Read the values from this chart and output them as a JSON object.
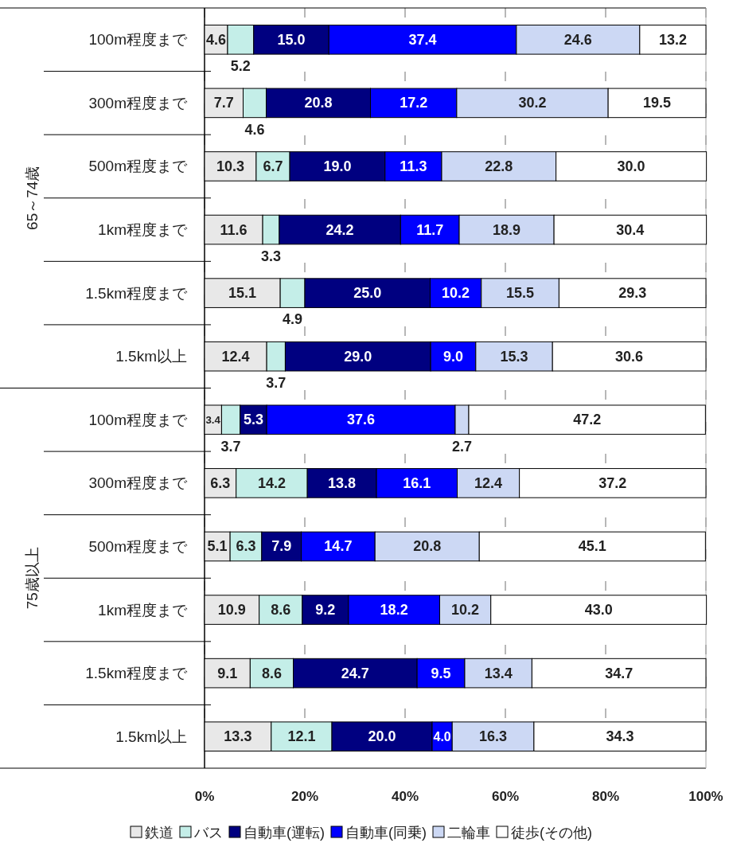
{
  "chart_data": {
    "type": "bar",
    "orientation": "horizontal",
    "stacked": true,
    "categories": [
      "100m程度まで",
      "300m程度まで",
      "500m程度まで",
      "1km程度まで",
      "1.5km程度まで",
      "1.5km以上",
      "100m程度まで",
      "300m程度まで",
      "500m程度まで",
      "1km程度まで",
      "1.5km程度まで",
      "1.5km以上"
    ],
    "series": [
      {
        "name": "鉄道",
        "color": "#e8e8e8",
        "values": [
          4.6,
          7.7,
          10.3,
          11.6,
          15.1,
          12.4,
          3.4,
          6.3,
          5.1,
          10.9,
          9.1,
          13.3
        ],
        "value_labels": [
          "4.6",
          "7.7",
          "10.3",
          "11.6",
          "15.1",
          "12.4",
          "3.4",
          "6.3",
          "5.1",
          "10.9",
          "9.1",
          "13.3"
        ]
      },
      {
        "name": "バス",
        "color": "#c4eee8",
        "values": [
          5.2,
          4.6,
          6.7,
          3.3,
          4.9,
          3.7,
          3.7,
          14.2,
          6.3,
          8.6,
          8.6,
          12.1
        ],
        "value_labels": [
          "5.2",
          "4.6",
          "6.7",
          "3.3",
          "4.9",
          "3.7",
          "3.7",
          "14.2",
          "6.3",
          "8.6",
          "8.6",
          "12.1"
        ]
      },
      {
        "name": "自動車(運転)",
        "color": "#000080",
        "values": [
          15.0,
          20.8,
          19.0,
          24.2,
          25.0,
          29.0,
          5.3,
          13.8,
          7.9,
          9.2,
          24.7,
          20.0
        ],
        "value_labels": [
          "15.0",
          "20.8",
          "19.0",
          "24.2",
          "25.0",
          "29.0",
          "5.3",
          "13.8",
          "7.9",
          "9.2",
          "24.7",
          "20.0"
        ]
      },
      {
        "name": "自動車(同乗)",
        "color": "#0000ff",
        "values": [
          37.4,
          17.2,
          11.3,
          11.7,
          10.2,
          9.0,
          37.6,
          16.1,
          14.7,
          18.2,
          9.5,
          4.0
        ],
        "value_labels": [
          "37.4",
          "17.2",
          "11.3",
          "11.7",
          "10.2",
          "9.0",
          "37.6",
          "16.1",
          "14.7",
          "18.2",
          "9.5",
          "4.0"
        ]
      },
      {
        "name": "二輪車",
        "color": "#ccd8f4",
        "values": [
          24.6,
          30.2,
          22.8,
          18.9,
          15.5,
          15.3,
          2.7,
          12.4,
          20.8,
          10.2,
          13.4,
          16.3
        ],
        "value_labels": [
          "24.6",
          "30.2",
          "22.8",
          "18.9",
          "15.5",
          "15.3",
          "2.7",
          "12.4",
          "20.8",
          "10.2",
          "13.4",
          "16.3"
        ]
      },
      {
        "name": "徒歩(その他)",
        "color": "#ffffff",
        "values": [
          13.2,
          19.5,
          30.0,
          30.4,
          29.3,
          30.6,
          47.2,
          37.2,
          45.1,
          43.0,
          34.7,
          34.3
        ],
        "value_labels": [
          "13.2",
          "19.5",
          "30.0",
          "30.4",
          "29.3",
          "30.6",
          "47.2",
          "37.2",
          "45.1",
          "43.0",
          "34.7",
          "34.3"
        ]
      }
    ],
    "xlim": [
      0,
      100
    ],
    "xticks": [
      {
        "value": 0,
        "label": "0%"
      },
      {
        "value": 20,
        "label": "20%"
      },
      {
        "value": 40,
        "label": "40%"
      },
      {
        "value": 60,
        "label": "60%"
      },
      {
        "value": 80,
        "label": "80%"
      },
      {
        "value": 100,
        "label": "100%"
      }
    ],
    "annotations": [
      "65～74歳",
      "75歳以上"
    ],
    "grid": "x",
    "legend": "bottom"
  }
}
